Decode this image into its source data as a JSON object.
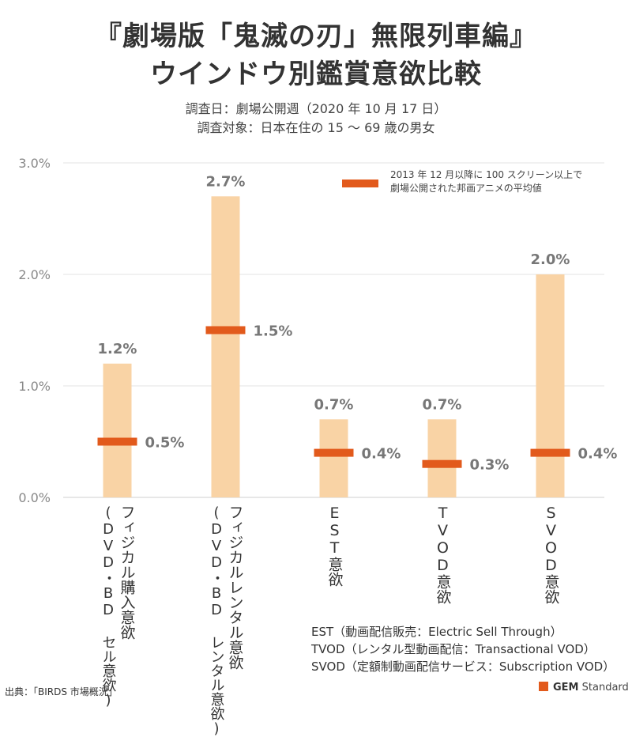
{
  "title_line1": "『劇場版「鬼滅の刃」無限列車編』",
  "title_line2": "ウインドウ別鑑賞意欲比較",
  "subtitle_line1": "調査日：劇場公開週（2020 年 10 月 17 日）",
  "subtitle_line2": "調査対象：日本在住の 15 〜 69 歳の男女",
  "legend": {
    "line1": "2013 年 12 月以降に 100 スクリーン以上で",
    "line2": "劇場公開された邦画アニメの平均値",
    "color": "#e25a1c"
  },
  "chart_data": {
    "type": "bar",
    "categories": [
      "フィジカル購入意欲",
      "フィジカルレンタル意欲",
      "EST意欲",
      "TVOD意欲",
      "SVOD意欲"
    ],
    "category_sublabels": [
      "(DVD・BD セル意欲)",
      "(DVD・BD レンタル意欲)",
      "",
      "",
      ""
    ],
    "series": [
      {
        "values": [
          1.2,
          2.7,
          0.7,
          0.7,
          2.0
        ],
        "labels": [
          "1.2%",
          "2.7%",
          "0.7%",
          "0.7%",
          "2.0%"
        ],
        "color": "#f9d3a5"
      },
      {
        "name": "2013 年 12 月以降に 100 スクリーン以上で劇場公開された邦画アニメの平均値",
        "values": [
          0.5,
          1.5,
          0.4,
          0.3,
          0.4
        ],
        "labels": [
          "0.5%",
          "1.5%",
          "0.4%",
          "0.3%",
          "0.4%"
        ],
        "color": "#e25a1c"
      }
    ],
    "ylim": [
      0,
      3.0
    ],
    "yticks": [
      "0.0%",
      "1.0%",
      "2.0%",
      "3.0%"
    ],
    "grid": true,
    "legend_position": "top-right"
  },
  "notes": [
    "EST（動画配信販売：Electric Sell Through）",
    "TVOD（レンタル型動画配信：Transactional VOD）",
    "SVOD（定額制動画配信サービス：Subscription VOD）"
  ],
  "source": "出典：「BIRDS 市場概況」",
  "brand": {
    "mark": "GEM",
    "name": "Standard"
  }
}
